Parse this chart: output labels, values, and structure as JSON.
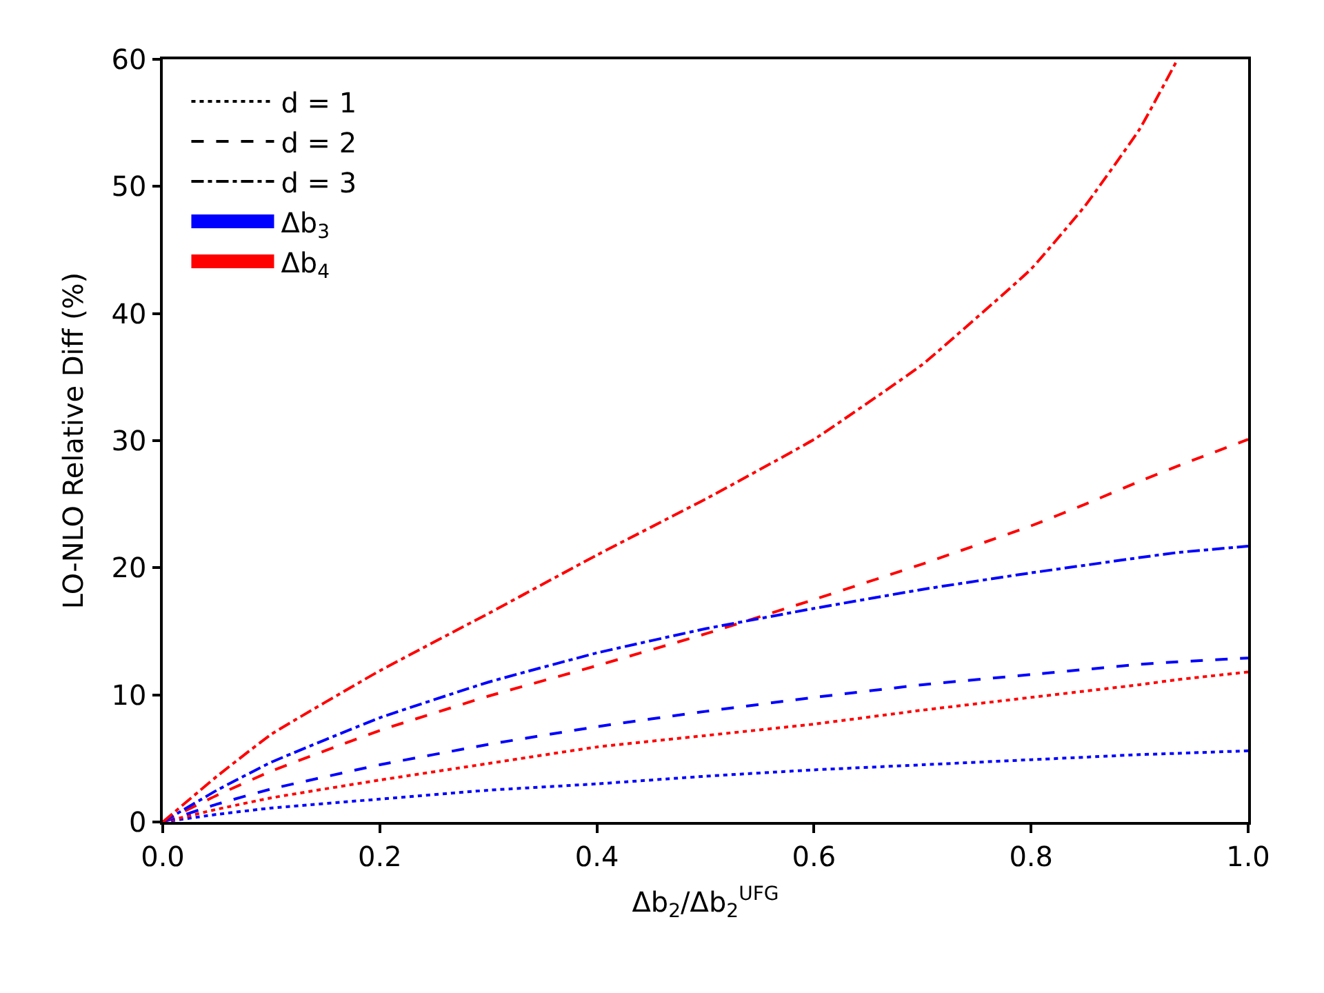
{
  "chart_data": {
    "type": "line",
    "xlabel": "Δb$_{2}$/Δb$_{2}$$^{UFG}$",
    "ylabel": "LO-NLO Relative Diff (%)",
    "x": [
      0,
      0.05,
      0.1,
      0.2,
      0.3,
      0.4,
      0.5,
      0.6,
      0.7,
      0.8,
      0.85,
      0.9,
      0.935,
      1.0
    ],
    "xlim": [
      0,
      1
    ],
    "xticks": [
      {
        "value": 0,
        "label": "0.0"
      },
      {
        "value": 0.2,
        "label": "0.2"
      },
      {
        "value": 0.4,
        "label": "0.4"
      },
      {
        "value": 0.6,
        "label": "0.6"
      },
      {
        "value": 0.8,
        "label": "0.8"
      },
      {
        "value": 1,
        "label": "1.0"
      }
    ],
    "ylim": [
      0,
      60
    ],
    "yticks": [
      0,
      10,
      20,
      30,
      40,
      50,
      60
    ],
    "legend": "top left",
    "marker": "none",
    "series": [
      {
        "color": "#0000ff",
        "line_style": "dotted",
        "values": [
          0,
          0.6,
          1.1,
          1.8,
          2.5,
          3.0,
          3.6,
          4.1,
          4.5,
          4.9,
          5.1,
          5.3,
          5.4,
          5.6
        ]
      },
      {
        "color": "#ff0000",
        "line_style": "dotted",
        "values": [
          0,
          1.0,
          1.9,
          3.3,
          4.6,
          5.9,
          6.8,
          7.7,
          8.8,
          9.8,
          10.3,
          10.8,
          11.2,
          11.8
        ]
      },
      {
        "color": "#0000ff",
        "line_style": "dashed",
        "values": [
          0,
          1.4,
          2.6,
          4.5,
          6.1,
          7.5,
          8.7,
          9.8,
          10.8,
          11.6,
          12.0,
          12.4,
          12.6,
          12.9
        ]
      },
      {
        "color": "#ff0000",
        "line_style": "dashed",
        "values": [
          0,
          2.1,
          4.0,
          7.2,
          9.9,
          12.3,
          14.8,
          17.5,
          20.3,
          23.3,
          25.0,
          26.8,
          28.0,
          30.1
        ]
      },
      {
        "color": "#0000ff",
        "line_style": "dashdot",
        "values": [
          0,
          2.5,
          4.7,
          8.2,
          11.0,
          13.3,
          15.2,
          16.8,
          18.3,
          19.6,
          20.2,
          20.8,
          21.2,
          21.7
        ]
      },
      {
        "color": "#ff0000",
        "line_style": "dashdot",
        "values": [
          0,
          3.6,
          6.9,
          11.9,
          16.4,
          21.0,
          25.4,
          30.1,
          36.0,
          43.5,
          48.5,
          54.5,
          60,
          null
        ]
      },
      {
        "name": "d = 1",
        "color": "#000000",
        "line_style": "dotted",
        "values": [
          null,
          null,
          null,
          null,
          null,
          null,
          null,
          null,
          null,
          null,
          null,
          null,
          null,
          null
        ]
      },
      {
        "name": "d = 2",
        "color": "#000000",
        "line_style": "dashed",
        "values": [
          null,
          null,
          null,
          null,
          null,
          null,
          null,
          null,
          null,
          null,
          null,
          null,
          null,
          null
        ]
      },
      {
        "name": "d = 3",
        "color": "#000000",
        "line_style": "dashdot",
        "values": [
          null,
          null,
          null,
          null,
          null,
          null,
          null,
          null,
          null,
          null,
          null,
          null,
          null,
          null
        ]
      },
      {
        "name": "Δb$_{3}$",
        "color": "#0000ff",
        "line_style": "solid",
        "values": [
          null,
          null,
          null,
          null,
          null,
          null,
          null,
          null,
          null,
          null,
          null,
          null,
          null,
          null
        ]
      },
      {
        "name": "Δb$_{4}$",
        "color": "#ff0000",
        "line_style": "solid",
        "values": [
          null,
          null,
          null,
          null,
          null,
          null,
          null,
          null,
          null,
          null,
          null,
          null,
          null,
          null
        ]
      }
    ]
  }
}
